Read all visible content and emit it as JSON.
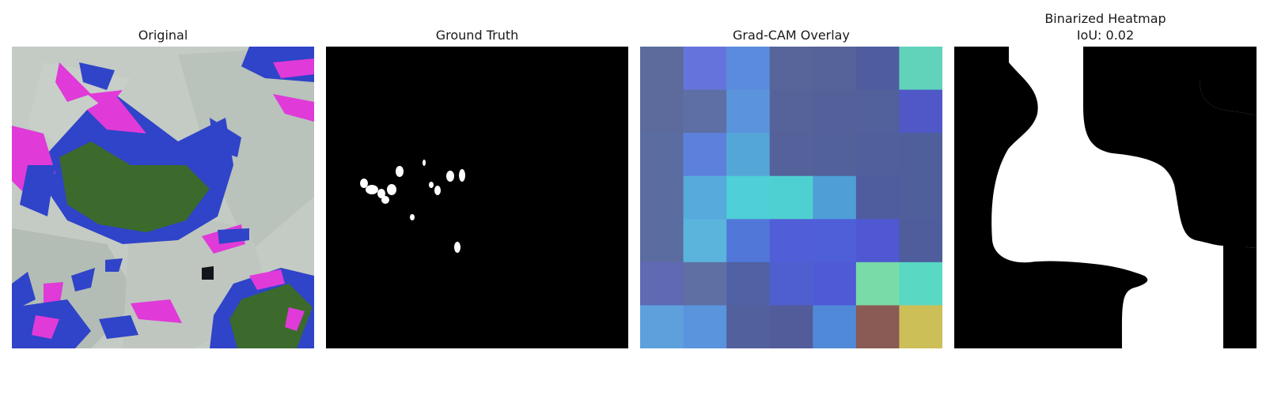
{
  "panels": [
    {
      "title": "Original"
    },
    {
      "title": "Ground Truth"
    },
    {
      "title": "Grad-CAM Overlay"
    },
    {
      "title": "Binarized Heatmap",
      "subtitle": "IoU: 0.02"
    }
  ],
  "gradcam_grid": {
    "rows": 7,
    "cols": 7,
    "colors": [
      [
        "#5c6b9c",
        "#6574dc",
        "#5b8bdc",
        "#58659a",
        "#56629a",
        "#4f5ca0",
        "#61d3bb"
      ],
      [
        "#5c6b9c",
        "#5d6fa4",
        "#5b94dc",
        "#56639a",
        "#53609a",
        "#52609c",
        "#4f58c6"
      ],
      [
        "#5b6ca0",
        "#5d80dc",
        "#55a6d8",
        "#54619a",
        "#53619a",
        "#51609c",
        "#4f5f9c"
      ],
      [
        "#5b6ca0",
        "#56aadc",
        "#4fcfd8",
        "#4fd0d0",
        "#4f9fd6",
        "#4f5c9e",
        "#4f5f9c"
      ],
      [
        "#5b6ca0",
        "#5ab4dc",
        "#5178d8",
        "#505fd8",
        "#4f5fd8",
        "#4f58d2",
        "#4f5d9c"
      ],
      [
        "#5f69b4",
        "#5f6fa4",
        "#5062a4",
        "#4f5fd0",
        "#4f5ad6",
        "#79dba8",
        "#59d8c4"
      ],
      [
        "#5ea0dc",
        "#5a94dc",
        "#53609e",
        "#535c9a",
        "#5089d8",
        "#8a5a54",
        "#cdbf58"
      ]
    ]
  }
}
